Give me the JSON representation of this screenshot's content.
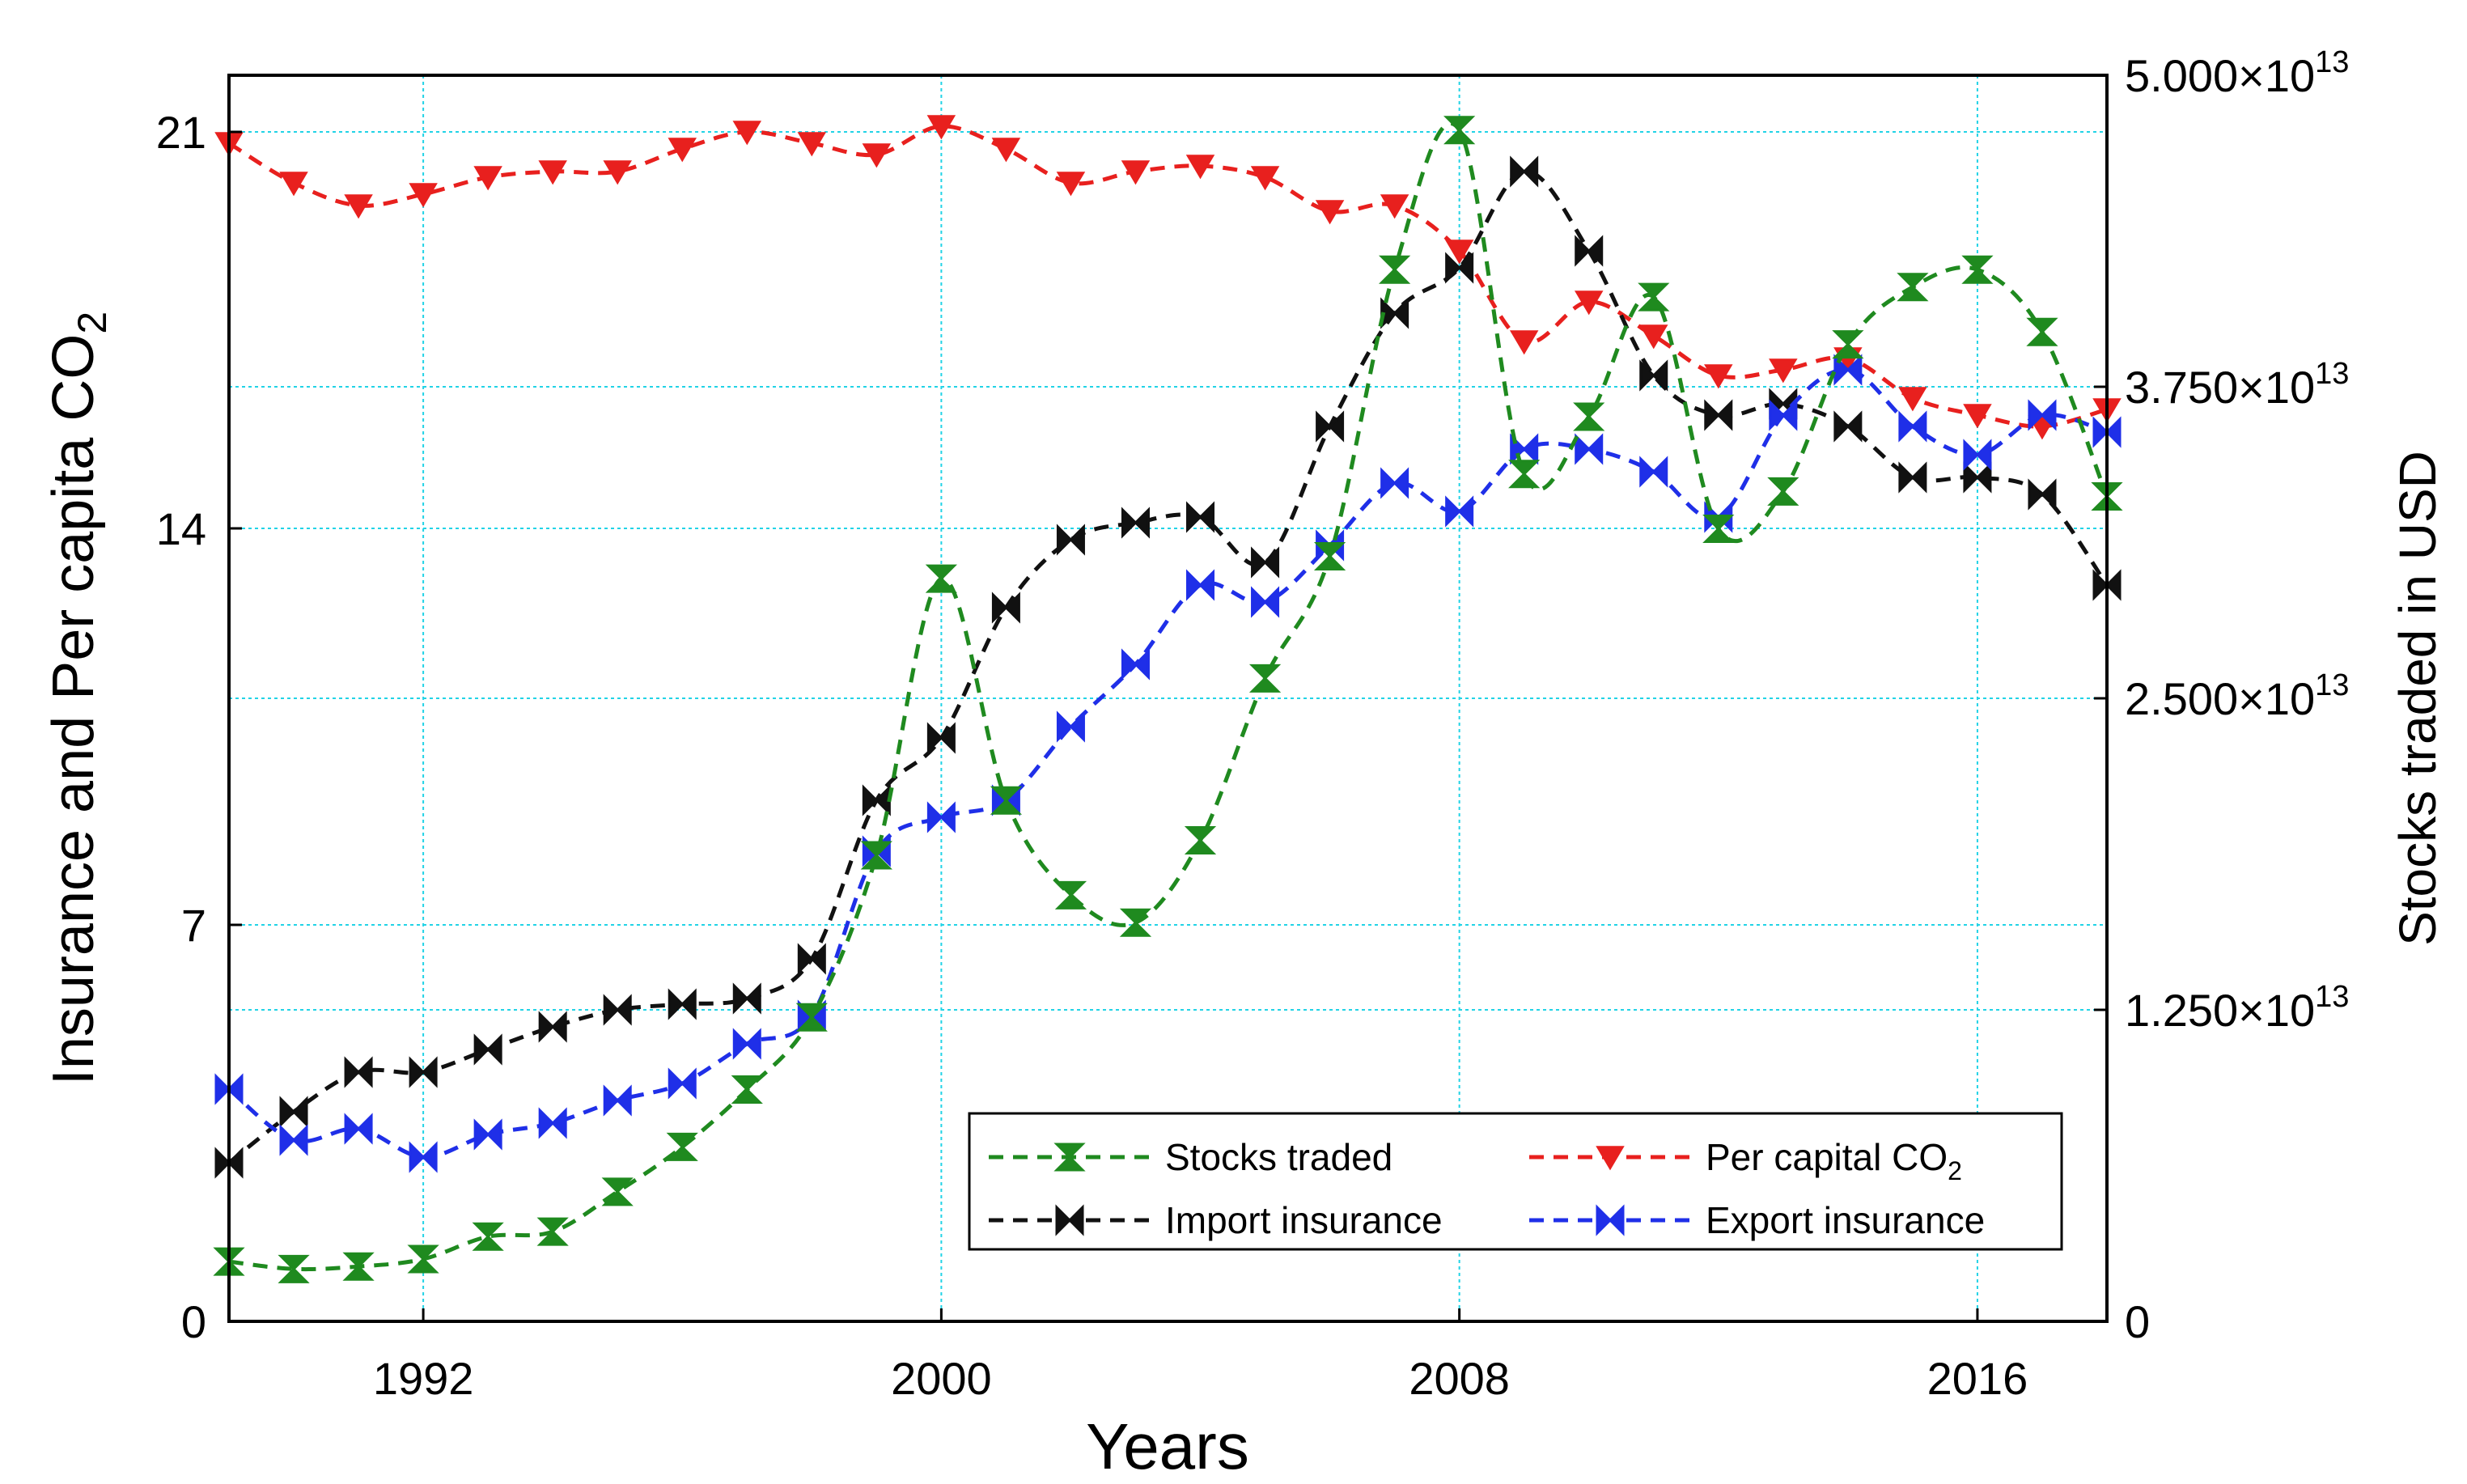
{
  "chart_data": {
    "type": "line",
    "xlabel": "Years",
    "ylabel_left": "Insurance and Per capita CO",
    "ylabel_left_sub": "2",
    "ylabel_right": "Stocks traded in USD",
    "xlim": [
      1989,
      2018
    ],
    "ylim_left": [
      0,
      22
    ],
    "ylim_right": [
      0,
      50000000000000.0
    ],
    "x_ticks": [
      1992,
      2000,
      2008,
      2016
    ],
    "y_left_ticks": [
      0,
      7,
      14,
      21
    ],
    "y_right_ticks": [
      {
        "value": 0,
        "mantissa": "0",
        "exp": ""
      },
      {
        "value": 12500000000000.0,
        "mantissa": "1.250×10",
        "exp": "13"
      },
      {
        "value": 25000000000000.0,
        "mantissa": "2.500×10",
        "exp": "13"
      },
      {
        "value": 37500000000000.0,
        "mantissa": "3.750×10",
        "exp": "13"
      },
      {
        "value": 50000000000000.0,
        "mantissa": "5.000×10",
        "exp": "13"
      }
    ],
    "grid": true,
    "legend_position": "bottom-right",
    "x": [
      1989,
      1990,
      1991,
      1992,
      1993,
      1994,
      1995,
      1996,
      1997,
      1998,
      1999,
      2000,
      2001,
      2002,
      2003,
      2004,
      2005,
      2006,
      2007,
      2008,
      2009,
      2010,
      2011,
      2012,
      2013,
      2014,
      2015,
      2016,
      2017,
      2018
    ],
    "series": [
      {
        "name": "Stocks traded",
        "name_sub": "",
        "axis": "right",
        "color": "#1f8a1f",
        "marker": "hourglass",
        "values": [
          2400000000000.0,
          2100000000000.0,
          2200000000000.0,
          2500000000000.0,
          3400000000000.0,
          3600000000000.0,
          5200000000000.0,
          7000000000000.0,
          9300000000000.0,
          12200000000000.0,
          18700000000000.0,
          29800000000000.0,
          20900000000000.0,
          17100000000000.0,
          16000000000000.0,
          19300000000000.0,
          25800000000000.0,
          30700000000000.0,
          42200000000000.0,
          47800000000000.0,
          34000000000000.0,
          36300000000000.0,
          41100000000000.0,
          31800000000000.0,
          33300000000000.0,
          39200000000000.0,
          41500000000000.0,
          42200000000000.0,
          39700000000000.0,
          33100000000000.0
        ]
      },
      {
        "name": "Per capital CO",
        "name_sub": "2",
        "axis": "left",
        "color": "#e8201e",
        "marker": "triangle-down",
        "values": [
          20.8,
          20.1,
          19.7,
          19.9,
          20.2,
          20.3,
          20.3,
          20.7,
          21.0,
          20.8,
          20.6,
          21.1,
          20.7,
          20.1,
          20.3,
          20.4,
          20.2,
          19.6,
          19.7,
          18.9,
          17.3,
          18.0,
          17.4,
          16.7,
          16.8,
          17.0,
          16.3,
          16.0,
          15.8,
          16.1
        ]
      },
      {
        "name": "Import insurance",
        "name_sub": "",
        "axis": "left",
        "color": "#111111",
        "marker": "bowtie",
        "values": [
          2.8,
          3.7,
          4.4,
          4.4,
          4.8,
          5.2,
          5.5,
          5.6,
          5.7,
          6.4,
          9.2,
          10.3,
          12.6,
          13.8,
          14.1,
          14.2,
          13.4,
          15.8,
          17.8,
          18.6,
          20.3,
          18.9,
          16.7,
          16.0,
          16.2,
          15.8,
          14.9,
          14.9,
          14.6,
          13.0
        ]
      },
      {
        "name": "Export insurance",
        "name_sub": "",
        "axis": "left",
        "color": "#1f2fe8",
        "marker": "bowtie",
        "values": [
          4.1,
          3.2,
          3.4,
          2.9,
          3.3,
          3.5,
          3.9,
          4.2,
          4.9,
          5.4,
          8.3,
          8.9,
          9.2,
          10.5,
          11.6,
          13.0,
          12.7,
          13.7,
          14.8,
          14.3,
          15.4,
          15.4,
          15.0,
          14.2,
          16.0,
          16.8,
          15.8,
          15.3,
          16.0,
          15.7
        ]
      }
    ]
  }
}
